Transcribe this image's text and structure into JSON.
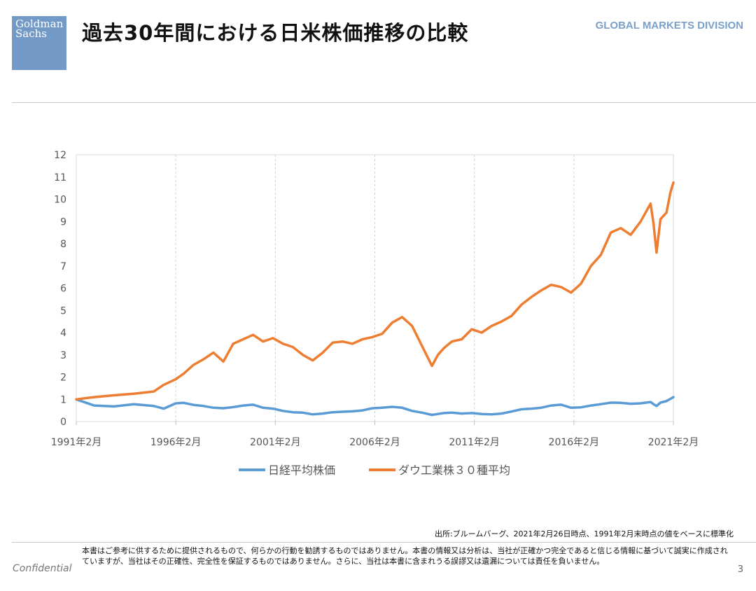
{
  "header": {
    "logo": "Goldman Sachs",
    "title": "過去30年間における日米株価推移の比較",
    "division": "GLOBAL MARKETS DIVISION"
  },
  "chart_data": {
    "type": "line",
    "title": "",
    "xlabel": "",
    "ylabel": "",
    "ylim": [
      0,
      12
    ],
    "yticks": [
      "0",
      "1",
      "2",
      "3",
      "4",
      "5",
      "6",
      "7",
      "8",
      "9",
      "10",
      "11",
      "12"
    ],
    "xticks": [
      "1991年2月",
      "1996年2月",
      "2001年2月",
      "2006年2月",
      "2011年2月",
      "2016年2月",
      "2021年2月"
    ],
    "grid": "vertical dashed at x ticks",
    "legend_position": "bottom",
    "x": [
      1991.1,
      1992,
      1993,
      1994,
      1995,
      1995.5,
      1996.1,
      1996.5,
      1997,
      1997.5,
      1998,
      1998.5,
      1999,
      1999.5,
      2000,
      2000.5,
      2001,
      2001.5,
      2002,
      2002.5,
      2003,
      2003.5,
      2004,
      2004.5,
      2005,
      2005.5,
      2006,
      2006.5,
      2007,
      2007.5,
      2008,
      2008.5,
      2009,
      2009.3,
      2009.6,
      2010,
      2010.5,
      2011,
      2011.5,
      2012,
      2012.5,
      2013,
      2013.5,
      2014,
      2014.5,
      2015,
      2015.5,
      2016,
      2016.5,
      2017,
      2017.5,
      2018,
      2018.5,
      2019,
      2019.5,
      2020,
      2020.15,
      2020.3,
      2020.5,
      2020.8,
      2021.0,
      2021.15
    ],
    "series": [
      {
        "name": "日経平均株価",
        "color": "#5b9bd5",
        "values": [
          1.0,
          0.72,
          0.68,
          0.78,
          0.7,
          0.58,
          0.82,
          0.84,
          0.75,
          0.7,
          0.62,
          0.6,
          0.65,
          0.72,
          0.76,
          0.62,
          0.58,
          0.48,
          0.42,
          0.4,
          0.32,
          0.36,
          0.42,
          0.44,
          0.46,
          0.5,
          0.6,
          0.62,
          0.66,
          0.62,
          0.48,
          0.4,
          0.3,
          0.34,
          0.38,
          0.4,
          0.36,
          0.38,
          0.34,
          0.32,
          0.36,
          0.45,
          0.55,
          0.58,
          0.62,
          0.72,
          0.76,
          0.62,
          0.64,
          0.72,
          0.78,
          0.85,
          0.84,
          0.8,
          0.82,
          0.88,
          0.78,
          0.7,
          0.85,
          0.92,
          1.02,
          1.1
        ]
      },
      {
        "name": "ダウ工業株３０種平均",
        "color": "#ed7d31",
        "values": [
          1.0,
          1.1,
          1.18,
          1.25,
          1.35,
          1.65,
          1.9,
          2.15,
          2.55,
          2.8,
          3.1,
          2.7,
          3.5,
          3.7,
          3.9,
          3.6,
          3.75,
          3.5,
          3.35,
          3.0,
          2.75,
          3.1,
          3.55,
          3.6,
          3.5,
          3.7,
          3.8,
          3.95,
          4.45,
          4.7,
          4.3,
          3.4,
          2.5,
          3.0,
          3.3,
          3.6,
          3.7,
          4.15,
          4.0,
          4.3,
          4.5,
          4.75,
          5.25,
          5.6,
          5.9,
          6.15,
          6.05,
          5.8,
          6.2,
          7.0,
          7.5,
          8.5,
          8.7,
          8.4,
          9.0,
          9.8,
          8.9,
          7.6,
          9.1,
          9.4,
          10.3,
          10.75
        ]
      }
    ]
  },
  "footer": {
    "source": "出所:ブルームバーグ、2021年2月26日時点、1991年2月末時点の値をベースに標準化",
    "confidential": "Confidential",
    "disclaimer": "本書はご参考に供するために提供されるもので、何らかの行動を勧誘するものではありません。本書の情報又は分析は、当社が正確かつ完全であると信じる情報に基づいて誠実に作成されていますが、当社はその正確性、完全性を保証するものではありません。さらに、当社は本書に含まれうる誤謬又は遺漏については責任を負いません。",
    "page": "3"
  }
}
